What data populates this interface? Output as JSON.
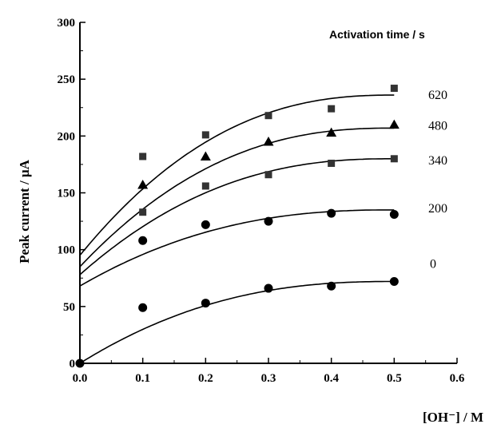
{
  "chart_data": {
    "type": "scatter",
    "xlabel": "[OH⁻] / M",
    "ylabel": "Peak current / μA",
    "legend_title": "Activation time / s",
    "xlim": [
      0.0,
      0.6
    ],
    "ylim": [
      0,
      300
    ],
    "x_ticks": [
      "0.0",
      "0.1",
      "0.2",
      "0.3",
      "0.4",
      "0.5",
      "0.6"
    ],
    "y_ticks": [
      "0",
      "50",
      "100",
      "150",
      "200",
      "250",
      "300"
    ],
    "grid": false,
    "series": [
      {
        "name": "0",
        "marker": "circle",
        "x": [
          0.0,
          0.1,
          0.2,
          0.3,
          0.4,
          0.5
        ],
        "y": [
          0,
          49,
          53,
          66,
          68,
          72
        ],
        "fit": {
          "y0": 0,
          "ymax": 72,
          "xmax": 0.5
        }
      },
      {
        "name": "200",
        "marker": "circle",
        "x": [
          0.1,
          0.2,
          0.3,
          0.4,
          0.5
        ],
        "y": [
          108,
          122,
          125,
          132,
          131
        ],
        "fit": {
          "y0": 68,
          "ymax": 135,
          "xmax": 0.5
        }
      },
      {
        "name": "340",
        "marker": "square",
        "x": [
          0.1,
          0.2,
          0.3,
          0.4,
          0.5
        ],
        "y": [
          133,
          156,
          166,
          176,
          180
        ],
        "fit": {
          "y0": 78,
          "ymax": 180,
          "xmax": 0.5
        }
      },
      {
        "name": "480",
        "marker": "triangle",
        "x": [
          0.1,
          0.2,
          0.3,
          0.4,
          0.5
        ],
        "y": [
          157,
          182,
          195,
          203,
          210
        ],
        "fit": {
          "y0": 85,
          "ymax": 207,
          "xmax": 0.5
        }
      },
      {
        "name": "620",
        "marker": "square",
        "x": [
          0.1,
          0.2,
          0.3,
          0.4,
          0.5
        ],
        "y": [
          182,
          201,
          218,
          224,
          242
        ],
        "fit": {
          "y0": 95,
          "ymax": 236,
          "xmax": 0.5
        }
      }
    ]
  }
}
